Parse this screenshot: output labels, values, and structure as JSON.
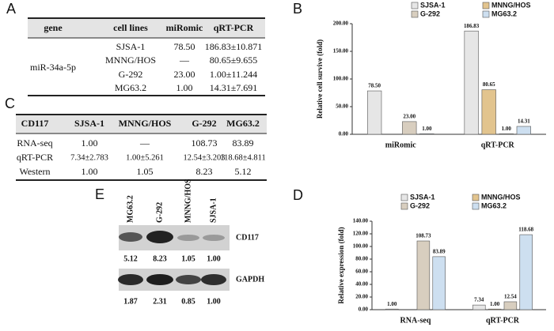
{
  "panel_a": {
    "label": "A",
    "headers": [
      "gene",
      "cell lines",
      "miRomic",
      "qRT-PCR"
    ],
    "gene": "miR-34a-5p",
    "rows": [
      [
        "SJSA-1",
        "78.50",
        "186.83±10.871"
      ],
      [
        "MNNG/HOS",
        "—",
        "80.65±9.655"
      ],
      [
        "G-292",
        "23.00",
        "1.00±11.244"
      ],
      [
        "MG63.2",
        "1.00",
        "14.31±7.691"
      ]
    ]
  },
  "panel_c": {
    "label": "C",
    "headers": [
      "CD117",
      "SJSA-1",
      "MNNG/HOS",
      "G-292",
      "MG63.2"
    ],
    "rows": [
      [
        "RNA-seq",
        "1.00",
        "—",
        "108.73",
        "83.89"
      ],
      [
        "qRT-PCR",
        "7.34±2.783",
        "1.00±5.261",
        "12.54±3.203",
        "118.68±4.811"
      ],
      [
        "Western",
        "1.00",
        "1.05",
        "8.23",
        "5.12"
      ]
    ]
  },
  "panel_e": {
    "label": "E",
    "lanes": [
      "MG63.2",
      "G-292",
      "MNNG/HOS",
      "SJSA-1"
    ],
    "blots": [
      {
        "name": "CD117",
        "values": [
          "5.12",
          "8.23",
          "1.05",
          "1.00"
        ]
      },
      {
        "name": "GAPDH",
        "values": [
          "1.87",
          "2.31",
          "0.85",
          "1.00"
        ]
      }
    ]
  },
  "chart_data": [
    {
      "type": "bar",
      "label": "B",
      "ylabel": "Relative cell survive (fold)",
      "categories": [
        "miRomic",
        "qRT-PCR"
      ],
      "ylim": [
        0,
        200
      ],
      "yticks": [
        {
          "value": 0,
          "label": "0.00"
        },
        {
          "value": 50,
          "label": "50.00"
        },
        {
          "value": 100,
          "label": "100.00"
        },
        {
          "value": 150,
          "label": "150.00"
        },
        {
          "value": 200,
          "label": "200.00"
        }
      ],
      "legend": "top",
      "series": [
        {
          "name": "SJSA-1",
          "color": "#e6e6e6",
          "values": [
            78.5,
            186.83
          ],
          "value_labels": [
            "78.50",
            "186.83"
          ]
        },
        {
          "name": "MNNG/HOS",
          "color": "#e2c48e",
          "values": [
            null,
            80.65
          ],
          "value_labels": [
            null,
            "80.65"
          ]
        },
        {
          "name": "G-292",
          "color": "#d8cebf",
          "values": [
            23,
            1
          ],
          "value_labels": [
            "23.00",
            "1.00"
          ]
        },
        {
          "name": "MG63.2",
          "color": "#cddff0",
          "values": [
            1,
            14.31
          ],
          "value_labels": [
            "1.00",
            "14.31"
          ]
        }
      ]
    },
    {
      "type": "bar",
      "label": "D",
      "ylabel": "Relative expression (fold)",
      "categories": [
        "RNA-seq",
        "qRT-PCR"
      ],
      "ylim": [
        0,
        140
      ],
      "yticks": [
        {
          "value": 0,
          "label": "0.00"
        },
        {
          "value": 20,
          "label": "20.00"
        },
        {
          "value": 40,
          "label": "40.00"
        },
        {
          "value": 60,
          "label": "60.00"
        },
        {
          "value": 80,
          "label": "80.00"
        },
        {
          "value": 100,
          "label": "100.00"
        },
        {
          "value": 120,
          "label": "120.00"
        },
        {
          "value": 140,
          "label": "140.00"
        }
      ],
      "legend": "top",
      "series": [
        {
          "name": "SJSA-1",
          "color": "#e6e6e6",
          "values": [
            1,
            7.34
          ],
          "value_labels": [
            "1.00",
            "7.34"
          ]
        },
        {
          "name": "MNNG/HOS",
          "color": "#e2c48e",
          "values": [
            null,
            1
          ],
          "value_labels": [
            null,
            "1.00"
          ]
        },
        {
          "name": "G-292",
          "color": "#d8cebf",
          "values": [
            108.73,
            12.54
          ],
          "value_labels": [
            "108.73",
            "12.54"
          ]
        },
        {
          "name": "MG63.2",
          "color": "#cddff0",
          "values": [
            83.89,
            118.68
          ],
          "value_labels": [
            "83.89",
            "118.68"
          ]
        }
      ]
    }
  ]
}
